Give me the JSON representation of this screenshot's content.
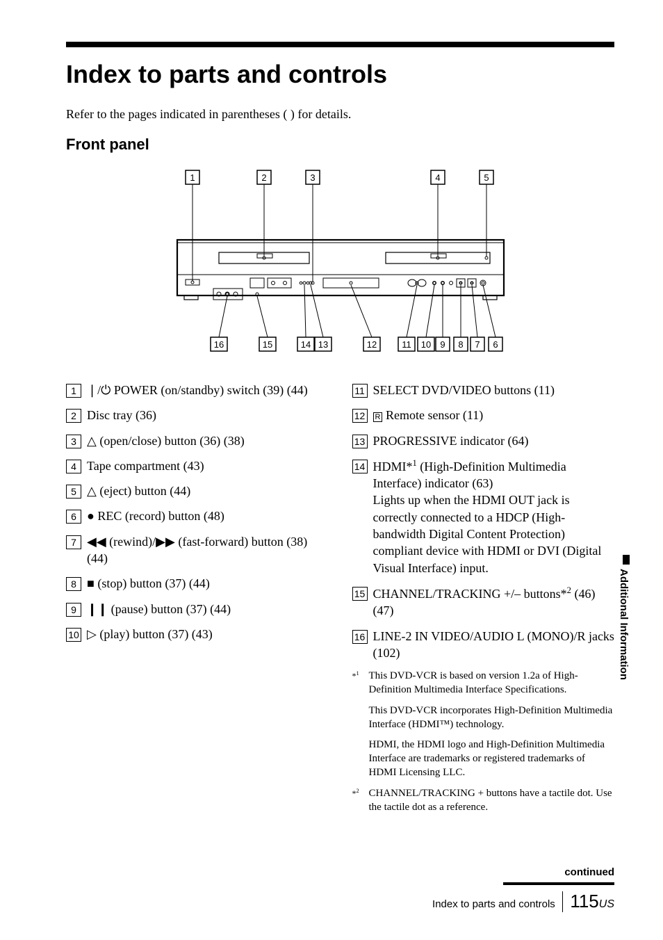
{
  "title": "Index to parts and controls",
  "intro": "Refer to the pages indicated in parentheses ( ) for details.",
  "subhead": "Front panel",
  "diagram": {
    "top_callouts": [
      "1",
      "2",
      "3",
      "4",
      "5"
    ],
    "bottom_callouts_left": [
      "16",
      "15",
      "14",
      "13"
    ],
    "bottom_callouts_right": [
      "12",
      "11",
      "10",
      "9",
      "8",
      "7",
      "6"
    ],
    "stroke": "#000000",
    "bg": "#ffffff"
  },
  "left_items": [
    {
      "n": "1",
      "text": "?/1 POWER (on/standby) switch (39) (44)"
    },
    {
      "n": "2",
      "text": "Disc tray (36)"
    },
    {
      "n": "3",
      "text": "Z (open/close) button (36) (38)"
    },
    {
      "n": "4",
      "text": "Tape compartment (43)"
    },
    {
      "n": "5",
      "text": "Z (eject) button (44)"
    },
    {
      "n": "6",
      "text": "z REC (record) button (48)"
    },
    {
      "n": "7",
      "text": "m (rewind)/M (fast-forward) button (38) (44)"
    },
    {
      "n": "8",
      "text": "x (stop) button (37) (44)"
    },
    {
      "n": "9",
      "text": "X (pause) button (37) (44)"
    },
    {
      "n": "10",
      "text": "N (play) button (37) (43)"
    }
  ],
  "right_items": [
    {
      "n": "11",
      "text": "SELECT DVD/VIDEO buttons (11)"
    },
    {
      "n": "12",
      "text": "  Remote sensor (11)",
      "icon": "remote"
    },
    {
      "n": "13",
      "text": "PROGRESSIVE indicator (64)"
    },
    {
      "n": "14",
      "html": "HDMI*<sup>1</sup> (High-Definition Multimedia Interface) indicator (63)<br>Lights up when the HDMI OUT jack is correctly connected to a HDCP (High-bandwidth Digital Content Protection) compliant device with HDMI or DVI (Digital Visual Interface) input."
    },
    {
      "n": "15",
      "html": "CHANNEL/TRACKING +/– buttons*<sup>2</sup> (46) (47)"
    },
    {
      "n": "16",
      "text": "LINE-2 IN VIDEO/AUDIO L (MONO)/R jacks (102)"
    }
  ],
  "footnotes": [
    {
      "mark": "*1",
      "paras": [
        "This DVD-VCR is based on version 1.2a of High-Definition Multimedia Interface Specifications.",
        "This DVD-VCR incorporates High-Definition Multimedia Interface (HDMI™) technology.",
        "HDMI, the HDMI logo and High-Definition Multimedia Interface are trademarks or registered trademarks of HDMI Licensing LLC."
      ]
    },
    {
      "mark": "*2",
      "paras": [
        "CHANNEL/TRACKING + buttons have a tactile dot. Use the tactile dot as a reference."
      ]
    }
  ],
  "side_tab": "Additional Information",
  "continued": "continued",
  "footer_section": "Index to parts and controls",
  "page_number": "115",
  "page_suffix": "US"
}
